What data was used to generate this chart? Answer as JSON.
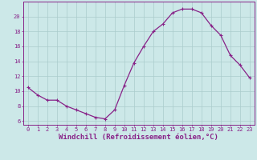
{
  "x": [
    0,
    1,
    2,
    3,
    4,
    5,
    6,
    7,
    8,
    9,
    10,
    11,
    12,
    13,
    14,
    15,
    16,
    17,
    18,
    19,
    20,
    21,
    22,
    23
  ],
  "y": [
    10.5,
    9.5,
    8.8,
    8.8,
    8.0,
    7.5,
    7.0,
    6.5,
    6.3,
    7.5,
    10.8,
    13.8,
    16.0,
    18.0,
    19.0,
    20.5,
    21.0,
    21.0,
    20.5,
    18.8,
    17.5,
    14.8,
    13.5,
    11.8
  ],
  "line_color": "#882288",
  "marker": "+",
  "marker_size": 3.5,
  "line_width": 0.9,
  "xlabel": "Windchill (Refroidissement éolien,°C)",
  "xlim": [
    -0.5,
    23.5
  ],
  "ylim": [
    5.5,
    22.0
  ],
  "yticks": [
    6,
    8,
    10,
    12,
    14,
    16,
    18,
    20
  ],
  "xtick_labels": [
    "0",
    "1",
    "2",
    "3",
    "4",
    "5",
    "6",
    "7",
    "8",
    "9",
    "10",
    "11",
    "12",
    "13",
    "14",
    "15",
    "16",
    "17",
    "18",
    "19",
    "20",
    "21",
    "22",
    "23"
  ],
  "background_color": "#cce8e8",
  "grid_color": "#aacccc",
  "tick_fontsize": 5.0,
  "xlabel_fontsize": 6.5,
  "spine_color": "#882288"
}
